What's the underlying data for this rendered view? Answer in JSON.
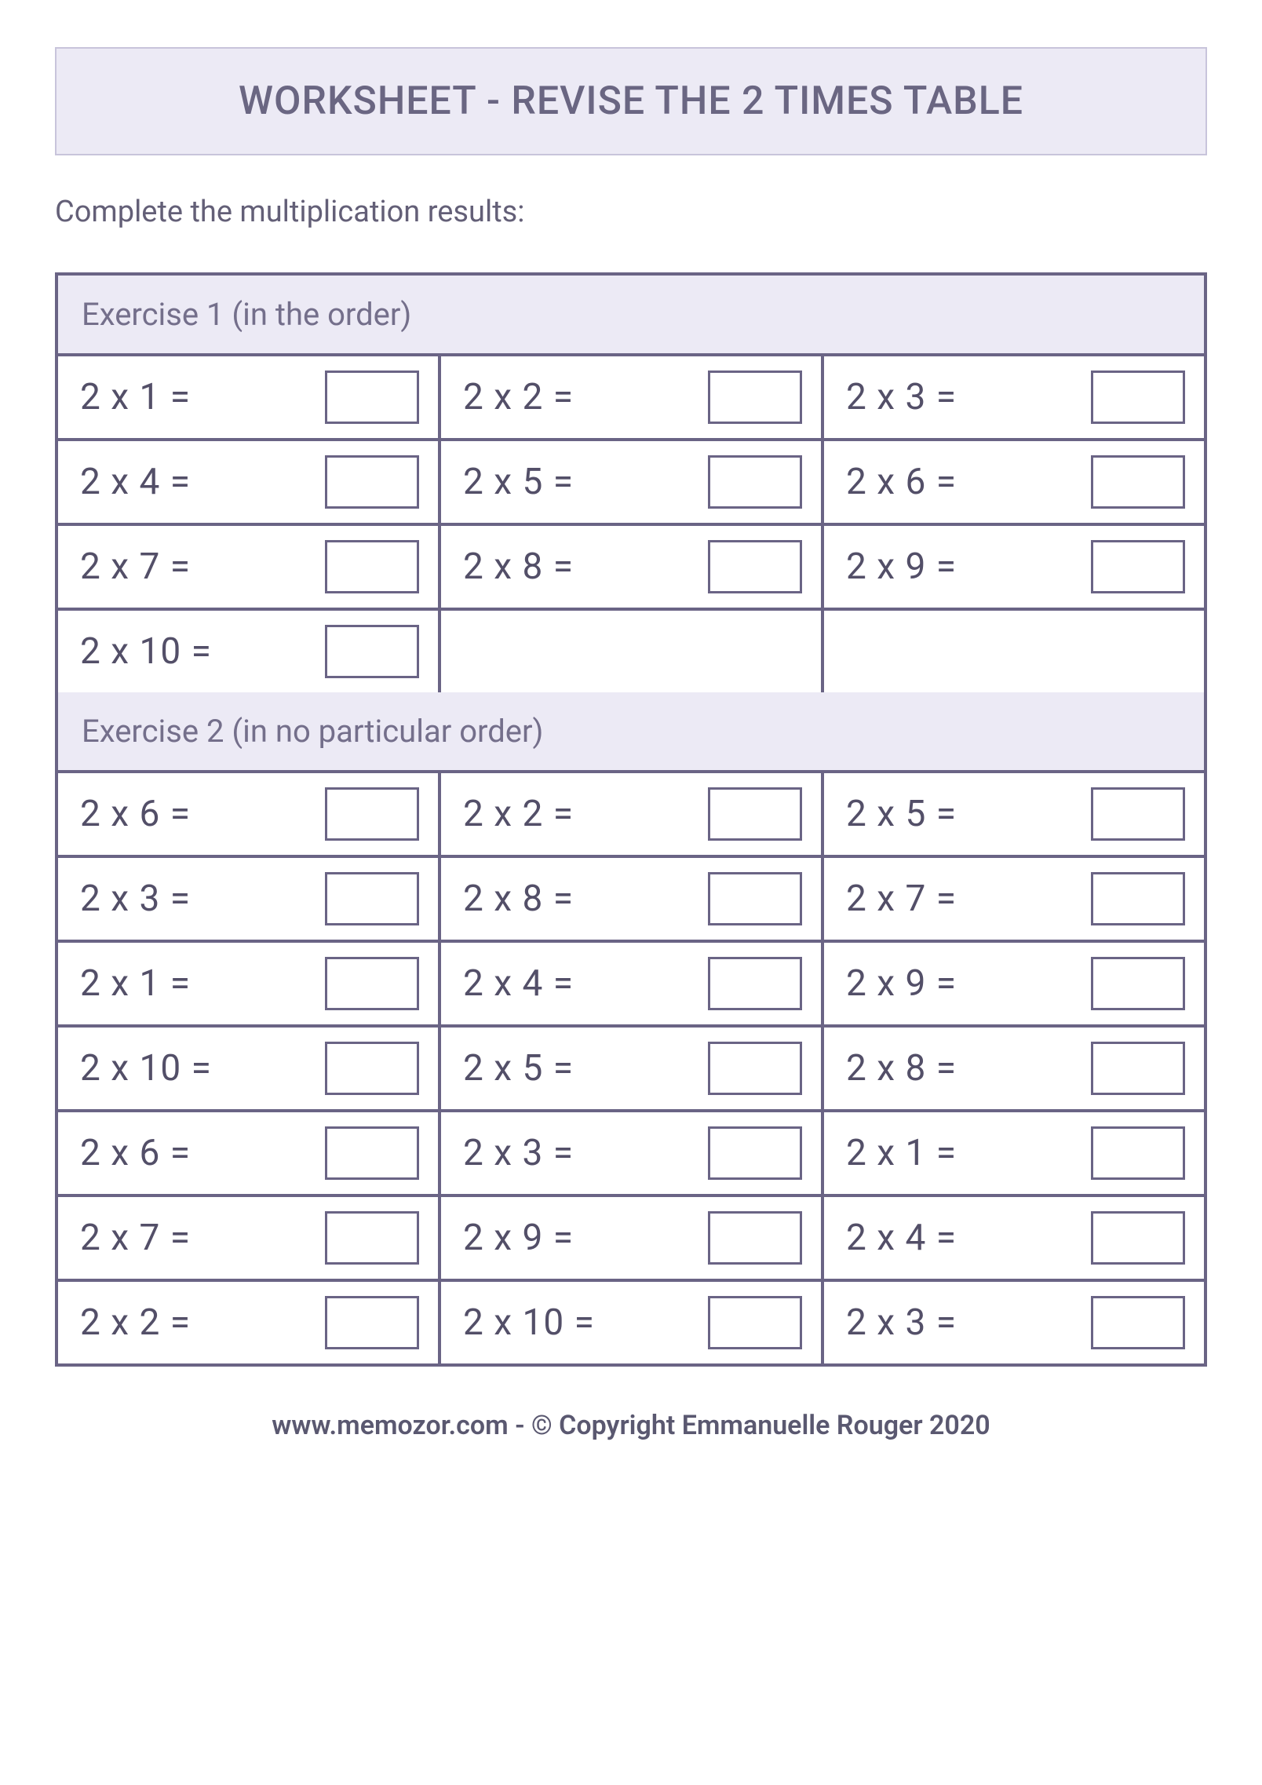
{
  "title": "WORKSHEET - REVISE THE 2 TIMES TABLE",
  "instruction": "Complete the multiplication results:",
  "colors": {
    "banner_bg": "#eceaf5",
    "banner_border": "#c8c4db",
    "table_border": "#6a6485",
    "text_primary": "#6a6682",
    "text_problem": "#534f68",
    "page_bg": "#ffffff"
  },
  "sections": [
    {
      "header": "Exercise 1 (in the order)",
      "rows": [
        [
          "2 x 1 =",
          "2 x 2 =",
          "2 x 3 ="
        ],
        [
          "2 x 4 =",
          "2 x 5 =",
          "2 x 6 ="
        ],
        [
          "2 x 7 =",
          "2 x 8 =",
          "2 x 9 ="
        ],
        [
          "2 x 10 =",
          "",
          ""
        ]
      ]
    },
    {
      "header": "Exercise 2 (in no particular order)",
      "rows": [
        [
          "2 x 6 =",
          "2 x 2 =",
          "2 x 5 ="
        ],
        [
          "2 x 3 =",
          "2 x 8 =",
          "2 x 7 ="
        ],
        [
          "2 x 1 =",
          "2 x 4 =",
          "2 x 9 ="
        ],
        [
          "2 x 10 =",
          "2 x 5 =",
          "2 x 8 ="
        ],
        [
          "2 x 6 =",
          "2 x 3 =",
          "2 x 1 ="
        ],
        [
          "2 x 7 =",
          "2 x 9 =",
          "2 x 4 ="
        ],
        [
          "2 x 2 =",
          "2 x 10 =",
          "2 x 3 ="
        ]
      ]
    }
  ],
  "footer": "www.memozor.com - © Copyright Emmanuelle Rouger 2020"
}
